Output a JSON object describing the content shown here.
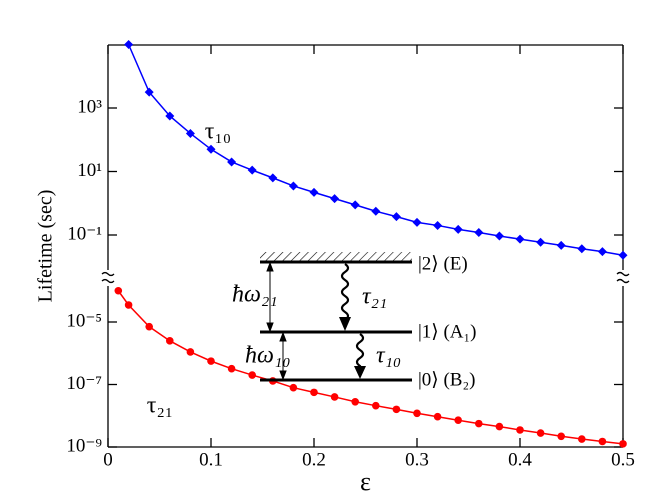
{
  "chart_data": [
    {
      "type": "line",
      "ylabel": "Lifetime (sec)",
      "ylog": true,
      "xlim": [
        0,
        0.5
      ],
      "ylim": [
        0.01,
        100000
      ],
      "yticks": [
        {
          "value": 0.1,
          "label": "10⁻¹"
        },
        {
          "value": 10,
          "label": "10¹"
        },
        {
          "value": 1000,
          "label": "10³"
        }
      ],
      "series": [
        {
          "name": "τ₁₀",
          "color": "#0000ff",
          "marker": "diamond",
          "x": [
            0.02,
            0.04,
            0.06,
            0.08,
            0.1,
            0.12,
            0.14,
            0.16,
            0.18,
            0.2,
            0.22,
            0.24,
            0.26,
            0.28,
            0.3,
            0.32,
            0.34,
            0.36,
            0.38,
            0.4,
            0.42,
            0.44,
            0.46,
            0.48,
            0.5
          ],
          "values": [
            100000,
            3162,
            562,
            158,
            50,
            20,
            11,
            6.3,
            3.5,
            2.2,
            1.4,
            0.89,
            0.56,
            0.38,
            0.25,
            0.2,
            0.15,
            0.12,
            0.093,
            0.074,
            0.059,
            0.047,
            0.037,
            0.03,
            0.023
          ]
        }
      ]
    },
    {
      "type": "line",
      "xlabel": "ε",
      "ylog": true,
      "xlim": [
        0,
        0.5
      ],
      "ylim": [
        1e-09,
        0.0001
      ],
      "xticks": [
        0,
        0.1,
        0.2,
        0.3,
        0.4,
        0.5
      ],
      "yticks": [
        {
          "value": 1e-09,
          "label": "10⁻⁹"
        },
        {
          "value": 1e-07,
          "label": "10⁻⁷"
        },
        {
          "value": 1e-05,
          "label": "10⁻⁵"
        }
      ],
      "series": [
        {
          "name": "τ₂₁",
          "color": "#ff0000",
          "marker": "circle",
          "x": [
            0.01,
            0.02,
            0.04,
            0.06,
            0.08,
            0.1,
            0.12,
            0.14,
            0.16,
            0.18,
            0.2,
            0.22,
            0.24,
            0.26,
            0.28,
            0.3,
            0.32,
            0.34,
            0.36,
            0.38,
            0.4,
            0.42,
            0.44,
            0.46,
            0.48,
            0.5
          ],
          "values": [
            0.0001,
            3.5e-05,
            7.1e-06,
            2.5e-06,
            1.1e-06,
            5.6e-07,
            3.2e-07,
            2e-07,
            1.3e-07,
            7.9e-08,
            5.6e-08,
            4e-08,
            2.8e-08,
            2.1e-08,
            1.6e-08,
            1.2e-08,
            9.3e-09,
            7.2e-09,
            5.6e-09,
            4.5e-09,
            3.5e-09,
            2.8e-09,
            2.2e-09,
            1.8e-09,
            1.5e-09,
            1.26e-09
          ]
        }
      ]
    }
  ],
  "inset": {
    "level2": "|2⟩ (E)",
    "level1": "|1⟩ (A₁)",
    "level0": "|0⟩ (B₂)",
    "omega21": "ħω₂₁",
    "omega10": "ħω₁₀",
    "tau21": "τ₂₁",
    "tau10": "τ₁₀"
  }
}
